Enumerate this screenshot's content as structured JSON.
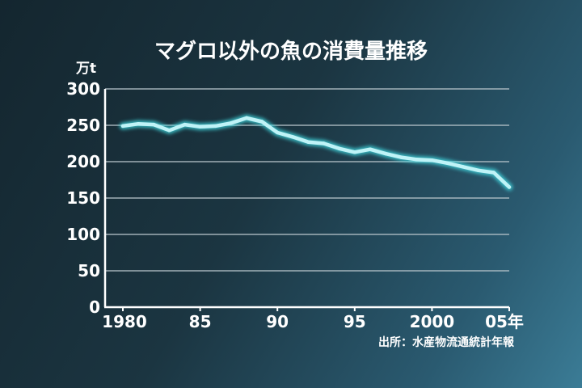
{
  "chart_data": {
    "type": "line",
    "title": "マグロ以外の魚の消費量推移",
    "ylabel": "万t",
    "xlabel": "",
    "ylim": [
      0,
      300
    ],
    "xlim": [
      1980,
      2005
    ],
    "grid": true,
    "legend": "none",
    "line_color": "#bff3f7",
    "glow_color": "#42dfe6",
    "y_ticks": [
      0,
      50,
      100,
      150,
      200,
      250,
      300
    ],
    "x_ticks": [
      {
        "value": 1980,
        "label": "1980"
      },
      {
        "value": 1985,
        "label": "85"
      },
      {
        "value": 1990,
        "label": "90"
      },
      {
        "value": 1995,
        "label": "95"
      },
      {
        "value": 2000,
        "label": "2000"
      },
      {
        "value": 2005,
        "label": "05年"
      }
    ],
    "series": [
      {
        "x": [
          1980,
          1981,
          1982,
          1983,
          1984,
          1985,
          1986,
          1987,
          1988,
          1989,
          1990,
          1991,
          1992,
          1993,
          1994,
          1995,
          1996,
          1997,
          1998,
          1999,
          2000,
          2001,
          2002,
          2003,
          2004,
          2005
        ],
        "values": [
          249,
          252,
          251,
          243,
          251,
          248,
          249,
          253,
          260,
          255,
          240,
          234,
          227,
          225,
          218,
          213,
          217,
          211,
          206,
          203,
          202,
          198,
          193,
          188,
          185,
          165
        ]
      }
    ],
    "source": "出所：水産物流通統計年報"
  }
}
